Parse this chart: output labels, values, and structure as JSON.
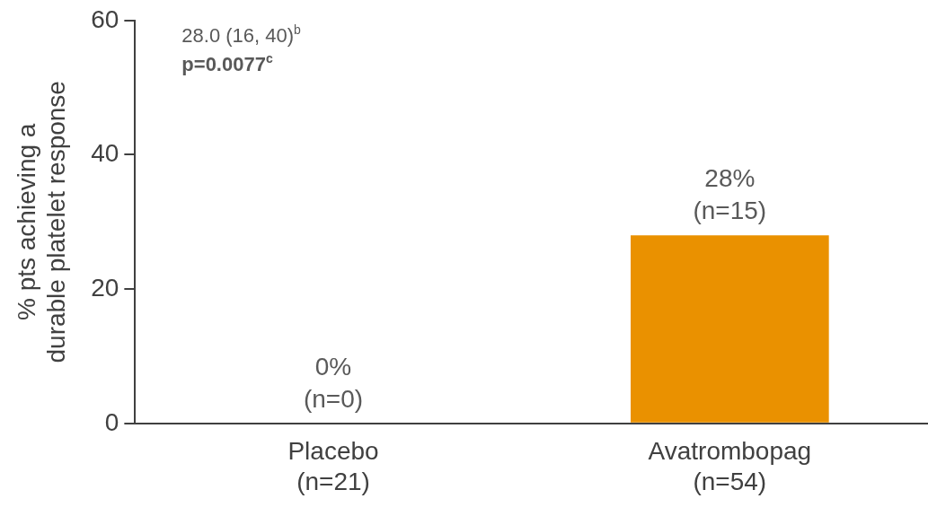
{
  "chart_data": {
    "type": "bar",
    "ylabel": "% pts achieving a\ndurable platelet response",
    "categories": [
      "Placebo\n(n=21)",
      "Avatrombopag\n(n=54)"
    ],
    "values": [
      0,
      28
    ],
    "color": "#ea9100",
    "value_labels": [
      "0%\n(n=0)",
      "28%\n(n=15)"
    ],
    "ylim": [
      0,
      60
    ],
    "yticks": [
      0,
      20,
      40,
      60
    ],
    "grid": false,
    "legend": false,
    "annotations": [
      "28.0 (16, 40)$^{b}$",
      "p=0.0077$^{c}$"
    ]
  }
}
